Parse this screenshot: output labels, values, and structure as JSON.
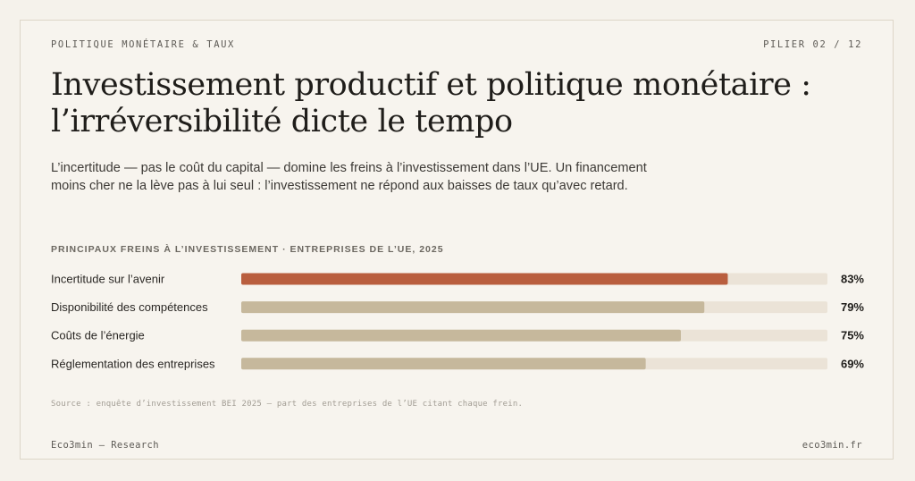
{
  "header": {
    "section": "POLITIQUE MONÉTAIRE & TAUX",
    "pillar": "PILIER 02 / 12"
  },
  "title_line1": "Investissement productif et politique monétaire :",
  "title_line2": "l’irréversibilité dicte le tempo",
  "subtitle": "L’incertitude — pas le coût du capital — domine les freins à l’investissement dans l’UE. Un financement moins cher ne la lève pas à lui seul : l’investissement ne répond aux baisses de taux qu’avec retard.",
  "chart_heading": "PRINCIPAUX FREINS À L’INVESTISSEMENT · ENTREPRISES DE L’UE, 2025",
  "chart_data": {
    "type": "bar",
    "orientation": "horizontal",
    "title": "PRINCIPAUX FREINS À L’INVESTISSEMENT · ENTREPRISES DE L’UE, 2025",
    "categories": [
      "Incertitude sur l’avenir",
      "Disponibilité des compétences",
      "Coûts de l’énergie",
      "Réglementation des entreprises"
    ],
    "values": [
      83,
      79,
      75,
      69
    ],
    "value_labels": [
      "83%",
      "79%",
      "75%",
      "69%"
    ],
    "unit": "%",
    "xlim": [
      0,
      100
    ],
    "highlight_index": 0,
    "colors": {
      "highlight": "#b95e3e",
      "bar": "#c6b89c",
      "track": "#ebe3d7"
    }
  },
  "source": "Source : enquête d’investissement BEI 2025 — part des entreprises de l’UE citant chaque frein.",
  "footer": {
    "left": "Eco3min — Research",
    "right": "eco3min.fr"
  }
}
